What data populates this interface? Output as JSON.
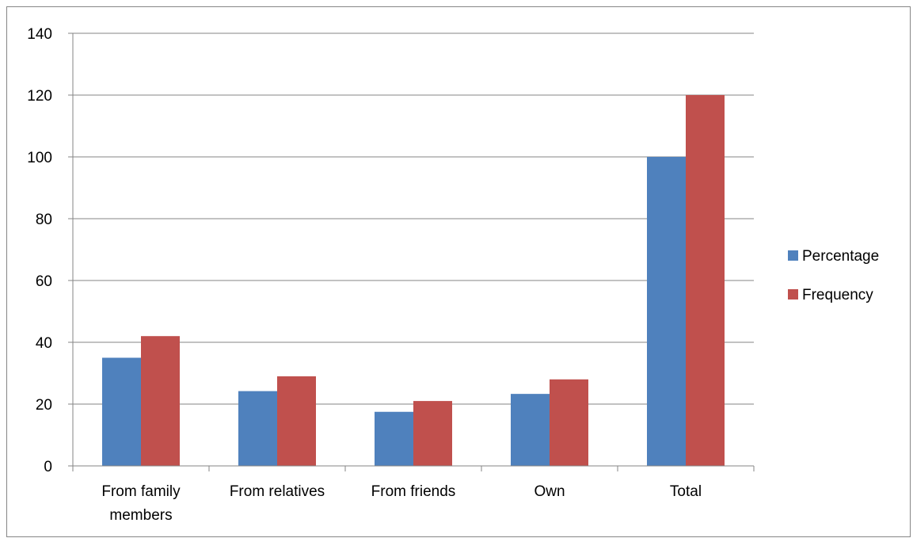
{
  "chart_data": {
    "type": "bar",
    "title": "",
    "xlabel": "",
    "ylabel": "",
    "categories": [
      [
        "From family",
        "members"
      ],
      [
        "From relatives"
      ],
      [
        "From friends"
      ],
      [
        "Own"
      ],
      [
        "Total"
      ]
    ],
    "series": [
      {
        "name": "Percentage",
        "color": "#4f81bd",
        "values": [
          35,
          24.2,
          17.5,
          23.3,
          100
        ]
      },
      {
        "name": "Frequency",
        "color": "#c0504d",
        "values": [
          42,
          29,
          21,
          28,
          120
        ]
      }
    ],
    "ylim": [
      0,
      140
    ],
    "yticks": [
      0,
      20,
      40,
      60,
      80,
      100,
      120,
      140
    ],
    "grid": true,
    "legend": "right"
  }
}
